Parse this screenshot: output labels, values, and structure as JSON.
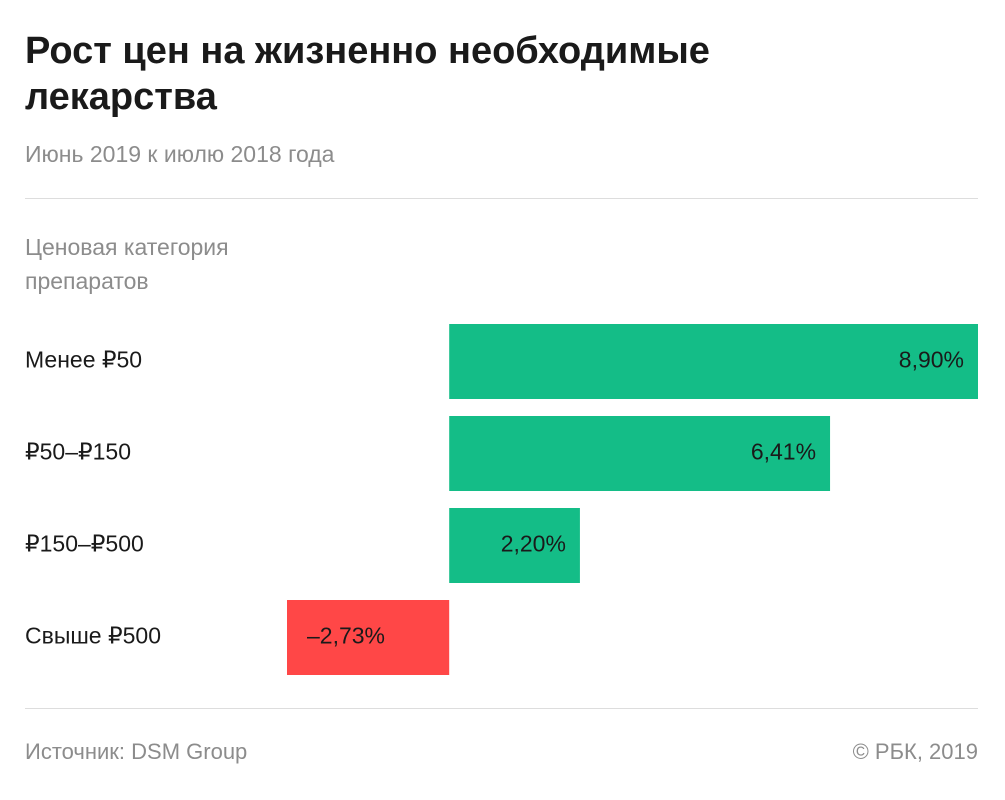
{
  "chart_data": {
    "type": "bar",
    "orientation": "horizontal",
    "title": "Рост цен на жизненно необходимые лекарства",
    "subtitle": "Июнь 2019 к июлю 2018 года",
    "category_header": "Ценовая категория препаратов",
    "categories": [
      "Менее ₽50",
      "₽50–₽150",
      "₽150–₽500",
      "Свыше ₽500"
    ],
    "values": [
      8.9,
      6.41,
      2.2,
      -2.73
    ],
    "value_labels": [
      "8,90%",
      "6,41%",
      "2,20%",
      "–2,73%"
    ],
    "colors": [
      "#14bd87",
      "#14bd87",
      "#14bd87",
      "#ff4747"
    ],
    "source": "Источник: DSM Group",
    "copyright": "© РБК, 2019"
  }
}
